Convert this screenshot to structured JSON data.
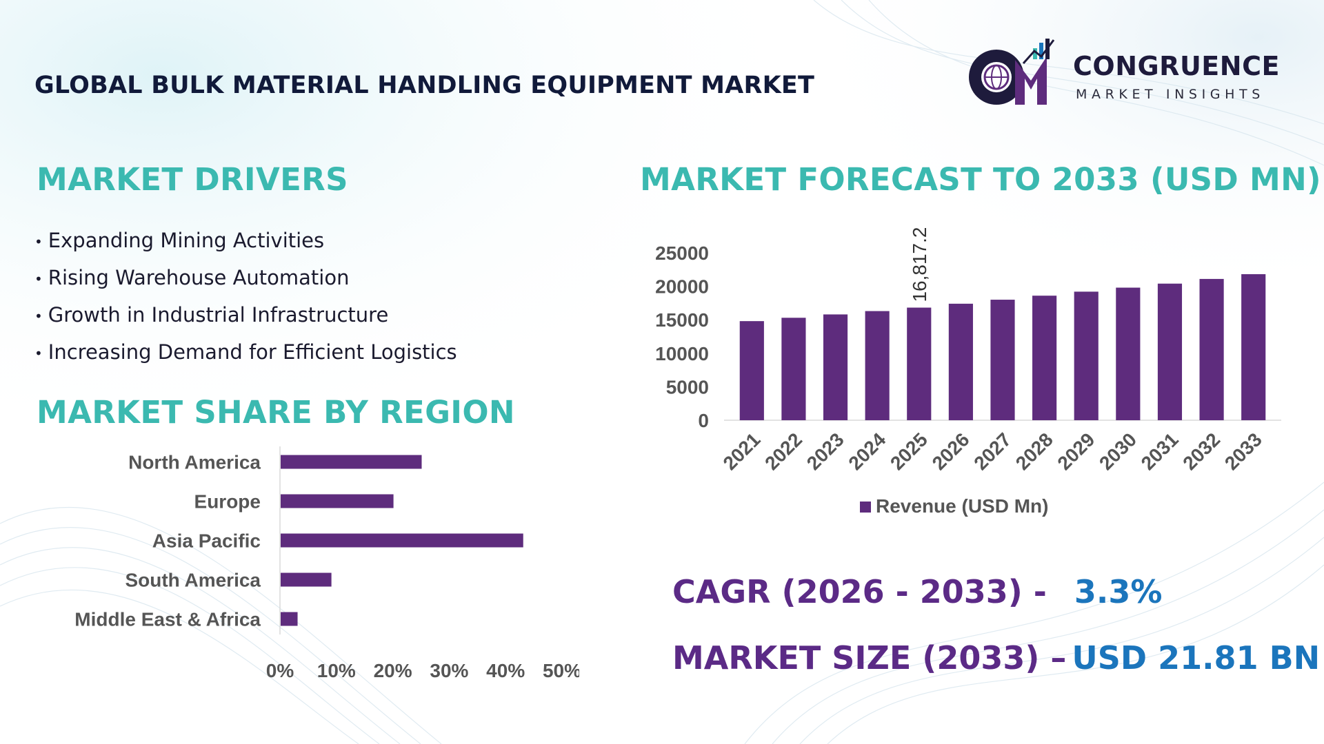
{
  "header": {
    "title": "GLOBAL BULK MATERIAL HANDLING EQUIPMENT MARKET"
  },
  "logo": {
    "brand": "CONGRUENCE",
    "tagline": "MARKET INSIGHTS",
    "icon": "globe-chart-logo-icon"
  },
  "drivers": {
    "heading": "MARKET DRIVERS",
    "items": [
      "Expanding Mining Activities",
      "Rising Warehouse Automation",
      "Growth in Industrial Infrastructure",
      "Increasing Demand for Efficient Logistics"
    ]
  },
  "region": {
    "heading": "MARKET SHARE BY REGION"
  },
  "forecast": {
    "heading": "MARKET FORECAST TO 2033 (USD MN)"
  },
  "stats": {
    "cagr_label": "CAGR (2026 - 2033) -",
    "cagr_value": "3.3%",
    "size_label": "MARKET SIZE (2033) –",
    "size_value": "USD 21.81 BN"
  },
  "colors": {
    "bar": "#5e2c7d",
    "heading_teal": "#3bb9b0",
    "stat_purple": "#5b2a86",
    "stat_blue": "#1b75bc"
  },
  "chart_data": [
    {
      "type": "bar",
      "orientation": "horizontal",
      "categories": [
        "North America",
        "Europe",
        "Asia Pacific",
        "South America",
        "Middle East & Africa"
      ],
      "values": [
        25,
        20,
        43,
        9,
        3
      ],
      "xlim": [
        0,
        50
      ],
      "xticks": [
        "0%",
        "10%",
        "20%",
        "30%",
        "40%",
        "50%"
      ],
      "grid": false
    },
    {
      "type": "bar",
      "categories": [
        "2021",
        "2022",
        "2023",
        "2024",
        "2025",
        "2026",
        "2027",
        "2028",
        "2029",
        "2030",
        "2031",
        "2032",
        "2033"
      ],
      "series": [
        {
          "name": "Revenue (USD Mn)",
          "values": [
            14800,
            15300,
            15800,
            16300,
            16817.2,
            17400,
            18000,
            18600,
            19200,
            19800,
            20400,
            21100,
            21810
          ]
        }
      ],
      "data_labels": [
        {
          "category": "2025",
          "text": "16,817.2"
        }
      ],
      "ylim": [
        0,
        25000
      ],
      "yticks": [
        "25000",
        "20000",
        "15000",
        "10000",
        "5000",
        "0"
      ],
      "legend": "bottom",
      "grid": false
    }
  ]
}
